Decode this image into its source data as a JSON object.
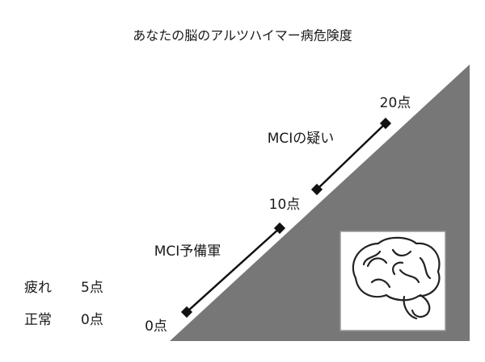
{
  "title": "あなたの脳のアルツハイマー病危険度",
  "scale_labels": [
    "0点",
    "10点",
    "20点"
  ],
  "stages": [
    "MCI予備軍",
    "MCIの疑い"
  ],
  "legend": [
    {
      "label": "疲れ",
      "score": "5点"
    },
    {
      "label": "正常",
      "score": "0点"
    }
  ]
}
